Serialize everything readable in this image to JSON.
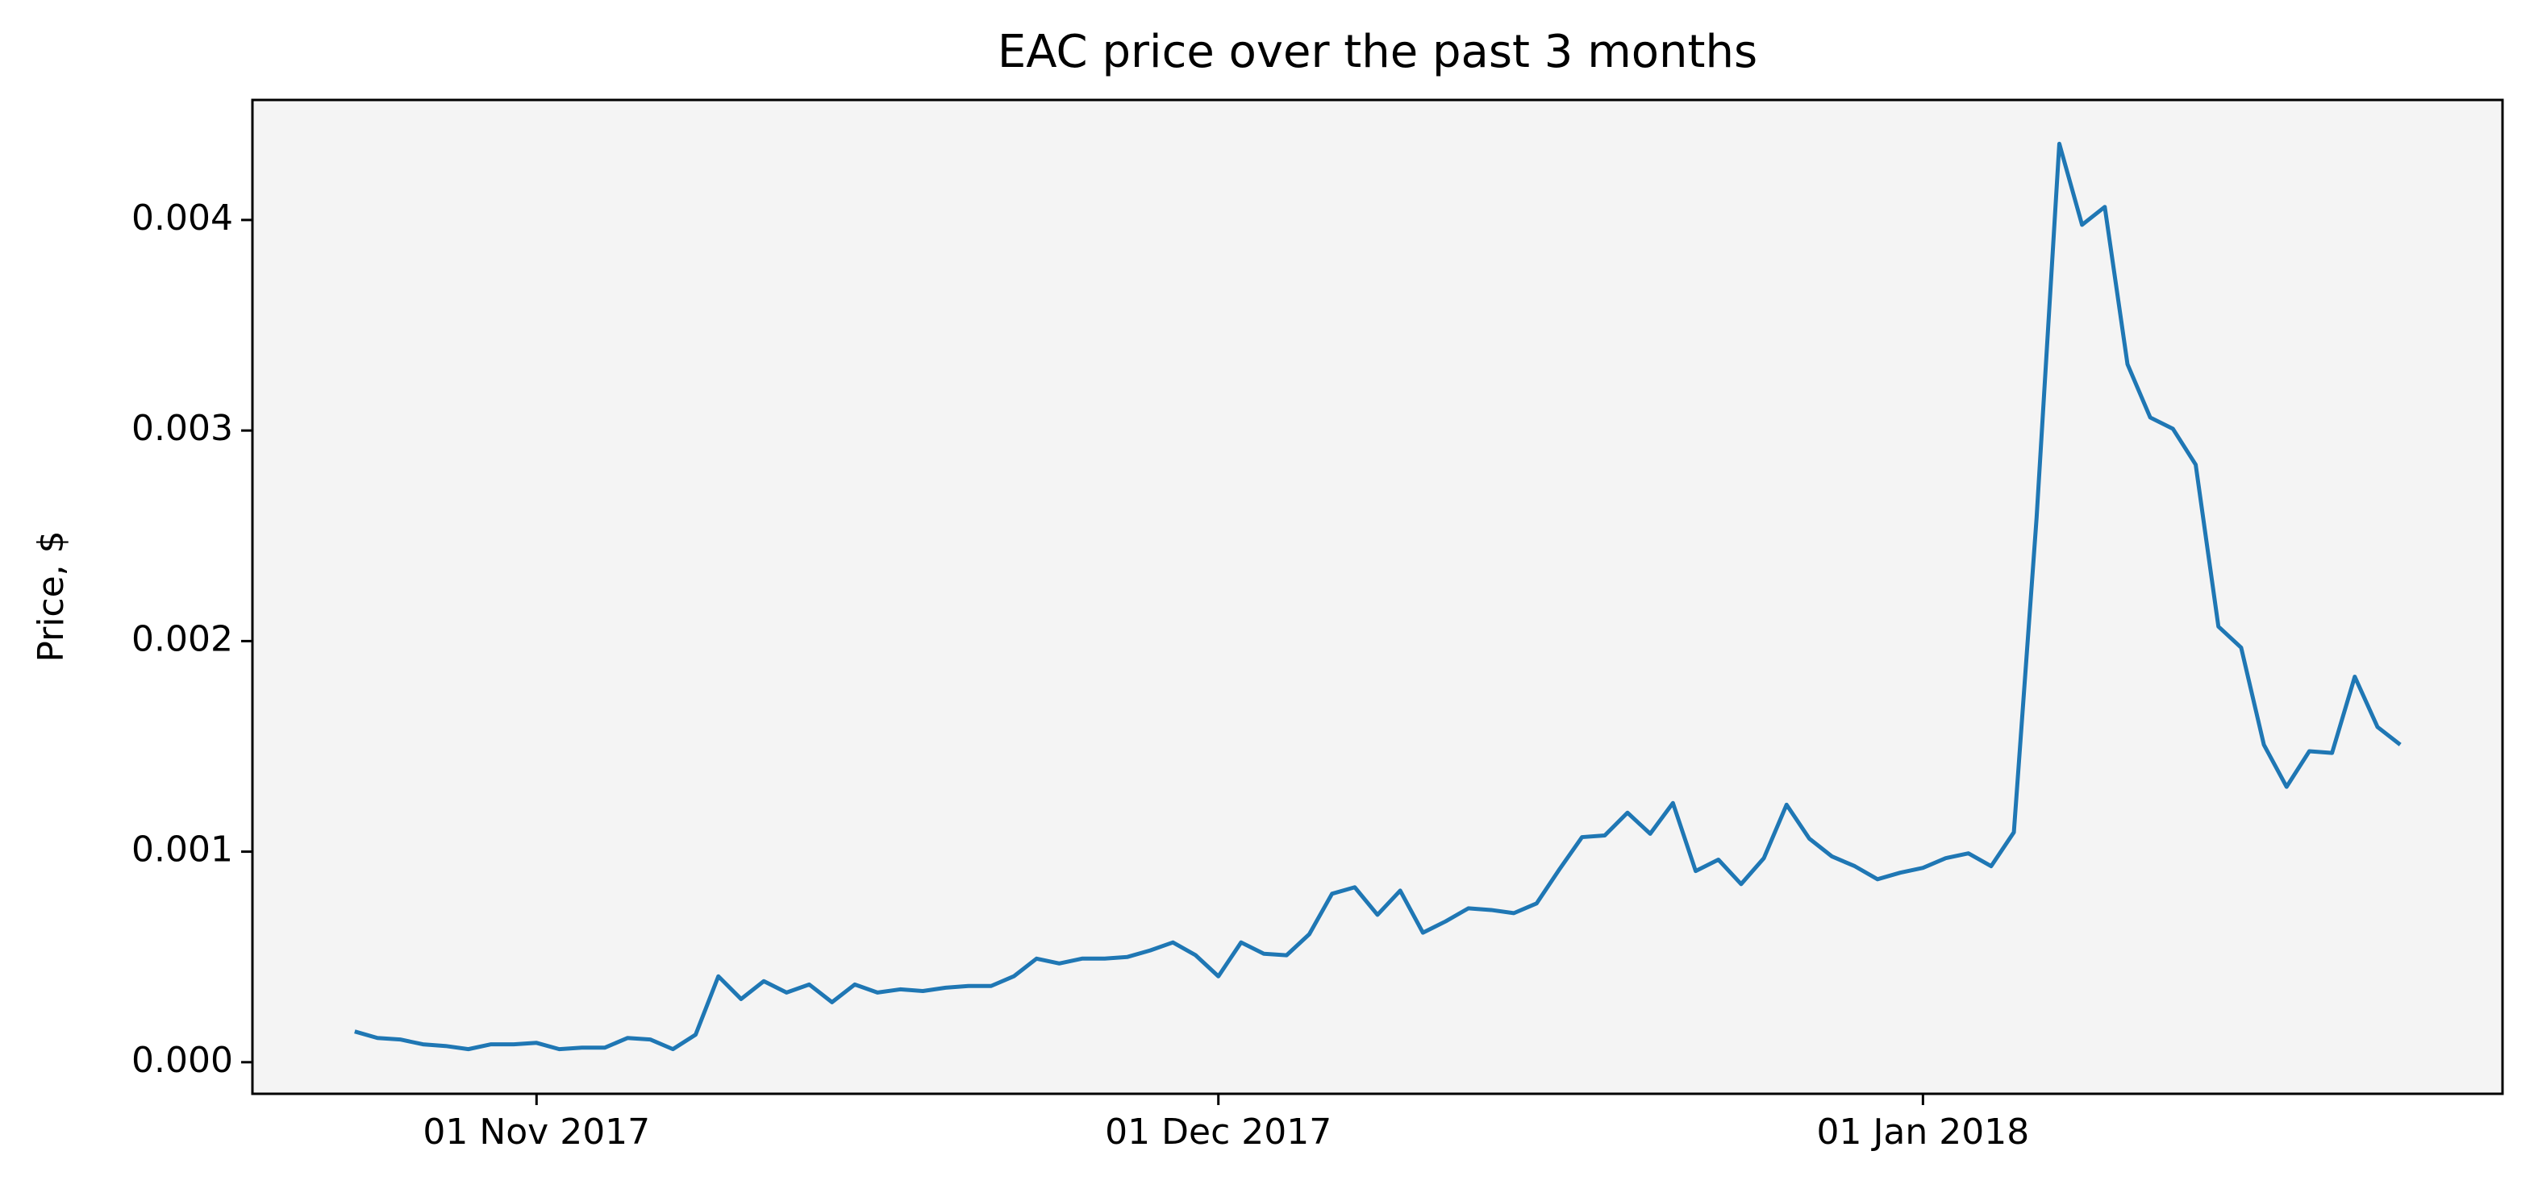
{
  "chart_data": {
    "type": "line",
    "title": "EAC price over the past 3 months",
    "y_label": "Price, $",
    "x": [
      "2017-10-24",
      "2017-10-25",
      "2017-10-26",
      "2017-10-27",
      "2017-10-28",
      "2017-10-29",
      "2017-10-30",
      "2017-10-31",
      "2017-11-01",
      "2017-11-02",
      "2017-11-03",
      "2017-11-04",
      "2017-11-05",
      "2017-11-06",
      "2017-11-07",
      "2017-11-08",
      "2017-11-09",
      "2017-11-10",
      "2017-11-11",
      "2017-11-12",
      "2017-11-13",
      "2017-11-14",
      "2017-11-15",
      "2017-11-16",
      "2017-11-17",
      "2017-11-18",
      "2017-11-19",
      "2017-11-20",
      "2017-11-21",
      "2017-11-22",
      "2017-11-23",
      "2017-11-24",
      "2017-11-25",
      "2017-11-26",
      "2017-11-27",
      "2017-11-28",
      "2017-11-29",
      "2017-11-30",
      "2017-12-01",
      "2017-12-02",
      "2017-12-03",
      "2017-12-04",
      "2017-12-05",
      "2017-12-06",
      "2017-12-07",
      "2017-12-08",
      "2017-12-09",
      "2017-12-10",
      "2017-12-11",
      "2017-12-12",
      "2017-12-13",
      "2017-12-14",
      "2017-12-15",
      "2017-12-16",
      "2017-12-17",
      "2017-12-18",
      "2017-12-19",
      "2017-12-20",
      "2017-12-21",
      "2017-12-22",
      "2017-12-23",
      "2017-12-24",
      "2017-12-25",
      "2017-12-26",
      "2017-12-27",
      "2017-12-28",
      "2017-12-29",
      "2017-12-30",
      "2017-12-31",
      "2018-01-01",
      "2018-01-02",
      "2018-01-03",
      "2018-01-04",
      "2018-01-05",
      "2018-01-06",
      "2018-01-07",
      "2018-01-08",
      "2018-01-09",
      "2018-01-10",
      "2018-01-11",
      "2018-01-12",
      "2018-01-13",
      "2018-01-14",
      "2018-01-15",
      "2018-01-16",
      "2018-01-17",
      "2018-01-18",
      "2018-01-19",
      "2018-01-20",
      "2018-01-21",
      "2018-01-22"
    ],
    "series": [
      {
        "name": "EAC",
        "color": "#1f77b4",
        "values": [
          0.000146,
          0.000115,
          0.000108,
          8.5e-05,
          7.7e-05,
          6.2e-05,
          8.5e-05,
          8.5e-05,
          9.2e-05,
          6.2e-05,
          6.9e-05,
          6.9e-05,
          0.000115,
          0.000108,
          6.2e-05,
          0.000131,
          0.000408,
          0.0003,
          0.000385,
          0.000331,
          0.000369,
          0.000285,
          0.000369,
          0.000331,
          0.000346,
          0.000338,
          0.000354,
          0.000362,
          0.000362,
          0.000408,
          0.000492,
          0.000469,
          0.000492,
          0.000492,
          0.0005,
          0.000531,
          0.000569,
          0.000508,
          0.000408,
          0.000569,
          0.000515,
          0.000508,
          0.000608,
          0.0008,
          0.000831,
          0.0007,
          0.000815,
          0.000615,
          0.000669,
          0.000731,
          0.000723,
          0.000708,
          0.000754,
          0.000915,
          0.001069,
          0.001077,
          0.001185,
          0.001085,
          0.001231,
          0.000908,
          0.000962,
          0.000846,
          0.000969,
          0.001223,
          0.001062,
          0.000977,
          0.000931,
          0.000869,
          0.0009,
          0.000923,
          0.000969,
          0.000992,
          0.000931,
          0.001092,
          0.002585,
          0.004362,
          0.003977,
          0.004062,
          0.003315,
          0.003062,
          0.003008,
          0.002838,
          0.002069,
          0.001969,
          0.001508,
          0.001308,
          0.001477,
          0.001469,
          0.001831,
          0.001592,
          0.001508
        ]
      }
    ],
    "xlim": [
      "2017-10-19T12:00",
      "2018-01-26T12:00"
    ],
    "xticks": [
      {
        "value": "2017-11-01",
        "label": "01 Nov 2017"
      },
      {
        "value": "2017-12-01",
        "label": "01 Dec 2017"
      },
      {
        "value": "2018-01-01",
        "label": "01 Jan 2018"
      }
    ],
    "ylim": [
      -0.00015,
      0.00457
    ],
    "yticks": [
      {
        "value": 0,
        "label": "0.000"
      },
      {
        "value": 0.001,
        "label": "0.001"
      },
      {
        "value": 0.002,
        "label": "0.002"
      },
      {
        "value": 0.003,
        "label": "0.003"
      },
      {
        "value": 0.004,
        "label": "0.004"
      }
    ],
    "background": "#f4f4f4"
  }
}
